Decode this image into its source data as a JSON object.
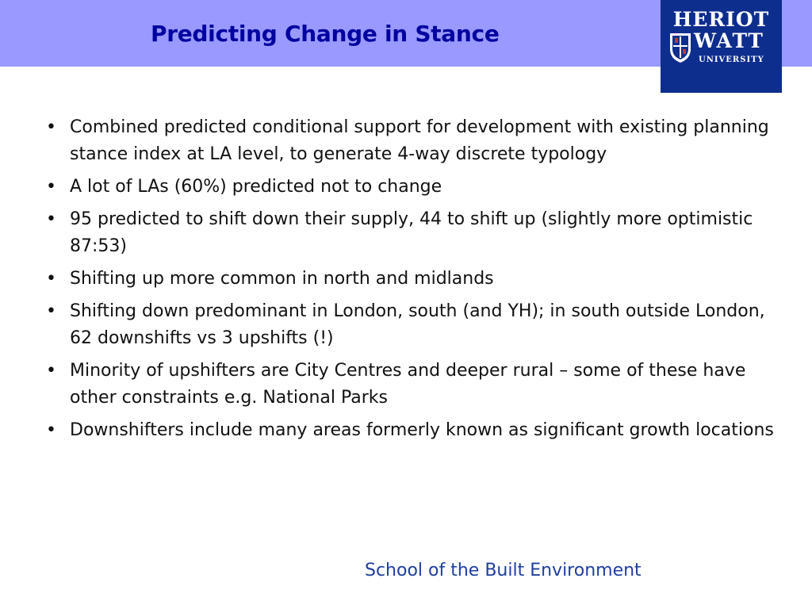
{
  "slide": {
    "title": "Predicting Change in Stance",
    "footer": "School of the Built Environment"
  },
  "logo": {
    "line1": "HERIOT",
    "line2": "WATT",
    "line3": "UNIVERSITY"
  },
  "bullet_symbol": "•",
  "bullets": [
    "Combined predicted conditional support for development with existing planning stance index at LA level, to generate 4-way discrete typology",
    "A lot of LAs (60%) predicted not to change",
    "95 predicted to shift down their supply, 44 to shift up (slightly more optimistic 87:53)",
    "Shifting up more common in north and midlands",
    "Shifting down predominant in London, south (and YH); in south outside London, 62 downshifts vs 3 upshifts (!)",
    "Minority of upshifters are City Centres and deeper rural – some of these have other constraints e.g. National Parks",
    "Downshifters include many areas formerly known as significant growth locations"
  ],
  "colors": {
    "header_band": "#9999ff",
    "title": "#0000a0",
    "logo_bg": "#0e2e8e",
    "footer": "#1e3ea0"
  }
}
